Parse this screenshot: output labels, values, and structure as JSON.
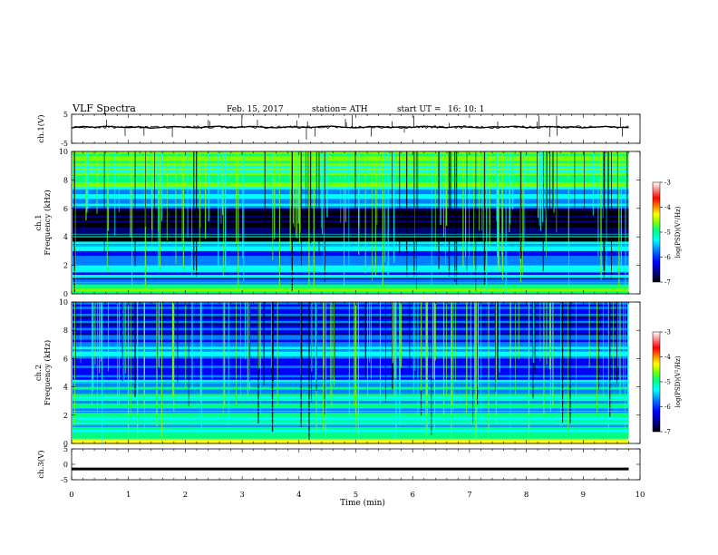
{
  "header": {
    "title": "VLF  Spectra",
    "date": "Feb. 15, 2017",
    "station": "station= ATH",
    "start_label": "start  UT  =",
    "start_time": "16: 10: 1"
  },
  "chart_data": [
    {
      "type": "line",
      "name": "ch1-waveform",
      "ylabel": "ch.1(V)",
      "ylim": [
        -5,
        5
      ],
      "yticks": [
        "5",
        "-5"
      ],
      "x": [
        0,
        0.2,
        0.4,
        0.6,
        0.8,
        1.0,
        1.2,
        1.4,
        1.6,
        1.8,
        2.0,
        2.2,
        2.4,
        2.6,
        2.8,
        3.0,
        3.2,
        3.4,
        3.6,
        3.8,
        4.0,
        4.2,
        4.4,
        4.6,
        4.8,
        5.0,
        5.2,
        5.4,
        5.6,
        5.8,
        6.0,
        6.2,
        6.4,
        6.6,
        6.8,
        7.0,
        7.2,
        7.4,
        7.6,
        7.8,
        8.0,
        8.2,
        8.4,
        8.6,
        8.8,
        9.0,
        9.2,
        9.4,
        9.6,
        9.8
      ],
      "values": [
        0.3,
        0.8,
        0.5,
        0.9,
        0.6,
        0.4,
        0.7,
        0.2,
        0.5,
        0.8,
        0.6,
        0.3,
        0.7,
        0.9,
        0.4,
        0.6,
        0.8,
        0.5,
        0.3,
        0.7,
        0.6,
        0.4,
        0.8,
        0.9,
        0.5,
        0.3,
        0.6,
        0.8,
        0.4,
        0.7,
        0.5,
        0.9,
        0.6,
        0.4,
        0.8,
        0.5,
        0.3,
        0.7,
        0.6,
        0.9,
        0.4,
        0.6,
        0.8,
        0.5,
        0.7,
        0.3,
        0.6,
        0.8,
        0.5,
        0.4
      ]
    },
    {
      "type": "heatmap",
      "name": "ch1-spectrogram",
      "ylabel": "ch.1\nFrequency  (kHz)",
      "ylim": [
        0,
        10
      ],
      "yticks": [
        "0",
        "2",
        "4",
        "6",
        "8",
        "10"
      ],
      "colorbar": {
        "label": "log(PSD)(V²/Hz)",
        "range": [
          -7,
          -3
        ],
        "ticks": [
          "-3",
          "-4",
          "-5",
          "-6",
          "-7"
        ]
      }
    },
    {
      "type": "heatmap",
      "name": "ch2-spectrogram",
      "ylabel": "ch.2\nFrequency  (kHz)",
      "ylim": [
        0,
        10
      ],
      "yticks": [
        "0",
        "2",
        "4",
        "6",
        "8",
        "10"
      ],
      "colorbar": {
        "label": "log(PSD)(V²/Hz)",
        "range": [
          -7,
          -3
        ],
        "ticks": [
          "-3",
          "-4",
          "-5",
          "-6",
          "-7"
        ]
      }
    },
    {
      "type": "line",
      "name": "ch3-waveform",
      "ylabel": "ch.3(V)",
      "ylim": [
        -5,
        5
      ],
      "yticks": [
        "5",
        "0",
        "-5"
      ],
      "x": [
        0,
        9.8
      ],
      "values": [
        -1.5,
        -1.5
      ]
    }
  ],
  "x_axis": {
    "label": "Time  (min)",
    "xlim": [
      0,
      10
    ],
    "ticks": [
      "0",
      "1",
      "2",
      "3",
      "4",
      "5",
      "6",
      "7",
      "8",
      "9",
      "10"
    ]
  },
  "colors": {
    "colormap": [
      "#000000",
      "#00007a",
      "#0000ff",
      "#0080ff",
      "#00ffff",
      "#00ff80",
      "#80ff00",
      "#ffff00",
      "#ff8000",
      "#ff0000",
      "#ffffff"
    ]
  }
}
